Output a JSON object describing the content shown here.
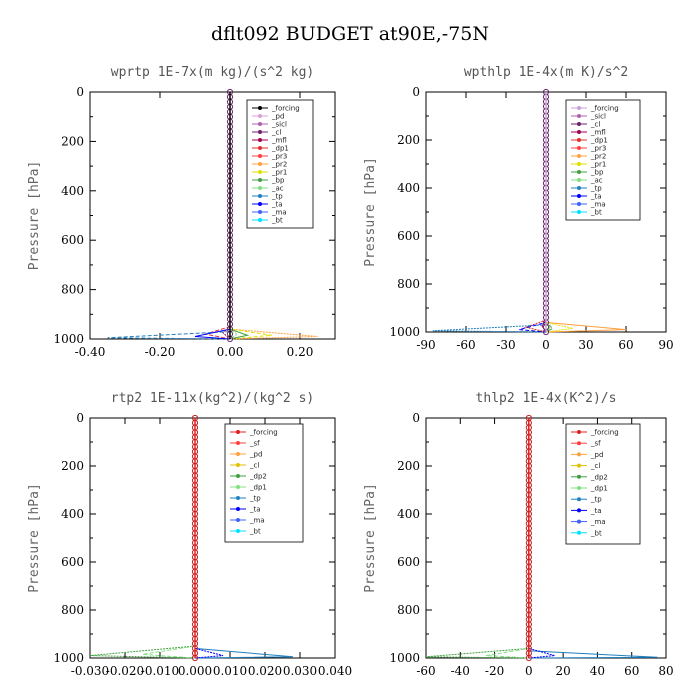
{
  "page_title": "dflt092  BUDGET at90E,-75N",
  "chart_data": [
    {
      "type": "line",
      "title": "wprtp   1E-7x(m kg)/(s^2 kg)",
      "ylabel": "Pressure [hPa]",
      "xlim": [
        -0.4,
        0.3
      ],
      "ylim": [
        1000,
        0
      ],
      "xticks": [
        -0.4,
        -0.2,
        0.0,
        0.2
      ],
      "xtick_labels": [
        "-0.40",
        "-0.20",
        "0.00",
        "0.20"
      ],
      "yticks": [
        0,
        200,
        400,
        600,
        800,
        1000
      ],
      "legend_position": "top-right",
      "series": [
        {
          "name": "_forcing",
          "color": "#000000",
          "x": [
            0,
            0,
            0
          ],
          "y": [
            0,
            500,
            1000
          ]
        },
        {
          "name": "_pd",
          "color": "#d8a0d8",
          "x": [
            0,
            0,
            0
          ],
          "y": [
            0,
            500,
            1000
          ]
        },
        {
          "name": "_sicl",
          "color": "#b060b0",
          "x": [
            0,
            0,
            0
          ],
          "y": [
            0,
            500,
            1000
          ]
        },
        {
          "name": "_cl",
          "color": "#702070",
          "x": [
            0,
            0,
            0
          ],
          "y": [
            0,
            500,
            1000
          ]
        },
        {
          "name": "_mfl",
          "color": "#a00050",
          "x": [
            0,
            0,
            -0.02,
            0
          ],
          "y": [
            0,
            950,
            975,
            1000
          ]
        },
        {
          "name": "_dp1",
          "color": "#e03030",
          "x": [
            0,
            0,
            -0.07,
            0
          ],
          "y": [
            0,
            950,
            980,
            1000
          ]
        },
        {
          "name": "_pr3",
          "color": "#ff4040",
          "x": [
            0,
            0,
            0
          ],
          "y": [
            0,
            500,
            1000
          ]
        },
        {
          "name": "_pr2",
          "color": "#ffa040",
          "x": [
            0,
            0,
            0.25,
            0
          ],
          "y": [
            0,
            960,
            990,
            1000
          ]
        },
        {
          "name": "_pr1",
          "color": "#e0e000",
          "x": [
            0,
            0,
            0.12,
            0
          ],
          "y": [
            0,
            960,
            985,
            1000
          ]
        },
        {
          "name": "_bp",
          "color": "#40a040",
          "x": [
            0,
            0,
            0.05,
            0
          ],
          "y": [
            0,
            960,
            985,
            1000
          ]
        },
        {
          "name": "_ac",
          "color": "#80e080",
          "x": [
            0,
            0,
            0.02,
            0
          ],
          "y": [
            0,
            960,
            980,
            1000
          ]
        },
        {
          "name": "_tp",
          "color": "#2080c0",
          "x": [
            0,
            0,
            -0.35,
            0
          ],
          "y": [
            0,
            970,
            995,
            1000
          ]
        },
        {
          "name": "_ta",
          "color": "#0000ff",
          "x": [
            0,
            0,
            -0.1,
            0
          ],
          "y": [
            0,
            960,
            990,
            1000
          ]
        },
        {
          "name": "_ma",
          "color": "#4060ff",
          "x": [
            0,
            0,
            0
          ],
          "y": [
            0,
            500,
            1000
          ]
        },
        {
          "name": "_bt",
          "color": "#00e0ff",
          "x": [
            0,
            0,
            0
          ],
          "y": [
            0,
            500,
            1000
          ]
        }
      ]
    },
    {
      "type": "line",
      "title": "wpthlp   1E-4x(m K)/s^2",
      "ylabel": "Pressure [hPa]",
      "xlim": [
        -90,
        90
      ],
      "ylim": [
        1000,
        0
      ],
      "xticks": [
        -90,
        -60,
        -30,
        0,
        30,
        60,
        90
      ],
      "xtick_labels": [
        "-90",
        "-60",
        "-30",
        "0",
        "30",
        "60",
        "90"
      ],
      "yticks": [
        0,
        200,
        400,
        600,
        800,
        1000
      ],
      "legend_position": "top-right",
      "series": [
        {
          "name": "_forcing",
          "color": "#c8a0d8",
          "x": [
            0,
            0,
            0
          ],
          "y": [
            0,
            500,
            1000
          ]
        },
        {
          "name": "_sicl",
          "color": "#b060b0",
          "x": [
            0,
            0,
            0
          ],
          "y": [
            0,
            500,
            1000
          ]
        },
        {
          "name": "_cl",
          "color": "#702070",
          "x": [
            0,
            0,
            0
          ],
          "y": [
            0,
            500,
            1000
          ]
        },
        {
          "name": "_mfl",
          "color": "#a00050",
          "x": [
            0,
            0,
            -3,
            0
          ],
          "y": [
            0,
            950,
            975,
            1000
          ]
        },
        {
          "name": "_dp1",
          "color": "#e03030",
          "x": [
            0,
            0,
            -15,
            0
          ],
          "y": [
            0,
            950,
            980,
            1000
          ]
        },
        {
          "name": "_pr3",
          "color": "#ff4040",
          "x": [
            0,
            0,
            0
          ],
          "y": [
            0,
            500,
            1000
          ]
        },
        {
          "name": "_pr2",
          "color": "#ffa040",
          "x": [
            0,
            0,
            60,
            0
          ],
          "y": [
            0,
            960,
            990,
            1000
          ]
        },
        {
          "name": "_pr1",
          "color": "#e0e000",
          "x": [
            0,
            0,
            20,
            0
          ],
          "y": [
            0,
            960,
            985,
            1000
          ]
        },
        {
          "name": "_bp",
          "color": "#40a040",
          "x": [
            0,
            0,
            5,
            0
          ],
          "y": [
            0,
            960,
            985,
            1000
          ]
        },
        {
          "name": "_ac",
          "color": "#80e080",
          "x": [
            0,
            0,
            3,
            0
          ],
          "y": [
            0,
            960,
            980,
            1000
          ]
        },
        {
          "name": "_tp",
          "color": "#2080c0",
          "x": [
            0,
            0,
            -85,
            0
          ],
          "y": [
            0,
            970,
            995,
            1000
          ]
        },
        {
          "name": "_ta",
          "color": "#0000ff",
          "x": [
            0,
            0,
            -20,
            0
          ],
          "y": [
            0,
            960,
            990,
            1000
          ]
        },
        {
          "name": "_ma",
          "color": "#4060ff",
          "x": [
            0,
            0,
            0
          ],
          "y": [
            0,
            500,
            1000
          ]
        },
        {
          "name": "_bt",
          "color": "#00e0ff",
          "x": [
            0,
            0,
            0
          ],
          "y": [
            0,
            500,
            1000
          ]
        }
      ]
    },
    {
      "type": "line",
      "title": "rtp2   1E-11x(kg^2)/(kg^2 s)",
      "ylabel": "Pressure [hPa]",
      "xlim": [
        -0.03,
        0.04
      ],
      "ylim": [
        1000,
        0
      ],
      "xticks": [
        -0.03,
        -0.02,
        -0.01,
        0.0,
        0.01,
        0.02,
        0.03,
        0.04
      ],
      "xtick_labels": [
        "-0.030",
        "-0.020",
        "-0.010",
        "0.000",
        "0.010",
        "0.020",
        "0.030",
        "0.040"
      ],
      "yticks": [
        0,
        200,
        400,
        600,
        800,
        1000
      ],
      "legend_position": "top-right",
      "series": [
        {
          "name": "_forcing",
          "color": "#e02020",
          "x": [
            0,
            0,
            0
          ],
          "y": [
            0,
            500,
            1000
          ]
        },
        {
          "name": "_sf",
          "color": "#ff4040",
          "x": [
            0,
            0,
            0
          ],
          "y": [
            0,
            500,
            1000
          ]
        },
        {
          "name": "_pd",
          "color": "#ffa040",
          "x": [
            0,
            0,
            0
          ],
          "y": [
            0,
            500,
            1000
          ]
        },
        {
          "name": "_cl",
          "color": "#e0c000",
          "x": [
            0,
            0,
            0
          ],
          "y": [
            0,
            500,
            1000
          ]
        },
        {
          "name": "_dp2",
          "color": "#40a040",
          "x": [
            0,
            0,
            -0.03,
            0
          ],
          "y": [
            0,
            950,
            990,
            1000
          ]
        },
        {
          "name": "_dp1",
          "color": "#80e080",
          "x": [
            0,
            0,
            -0.015,
            0
          ],
          "y": [
            0,
            950,
            985,
            1000
          ]
        },
        {
          "name": "_tp",
          "color": "#2080c0",
          "x": [
            0,
            0,
            0.028,
            0
          ],
          "y": [
            0,
            960,
            995,
            1000
          ]
        },
        {
          "name": "_ta",
          "color": "#0000ff",
          "x": [
            0,
            0,
            0.008,
            0
          ],
          "y": [
            0,
            960,
            990,
            1000
          ]
        },
        {
          "name": "_ma",
          "color": "#4060ff",
          "x": [
            0,
            0,
            0
          ],
          "y": [
            0,
            500,
            1000
          ]
        },
        {
          "name": "_bt",
          "color": "#00e0ff",
          "x": [
            0,
            0,
            0
          ],
          "y": [
            0,
            500,
            1000
          ]
        }
      ]
    },
    {
      "type": "line",
      "title": "thlp2   1E-4x(K^2)/s",
      "ylabel": "Pressure [hPa]",
      "xlim": [
        -60,
        80
      ],
      "ylim": [
        1000,
        0
      ],
      "xticks": [
        -60,
        -40,
        -20,
        0,
        20,
        40,
        60,
        80
      ],
      "xtick_labels": [
        "-60",
        "-40",
        "-20",
        "0",
        "20",
        "40",
        "60",
        "80"
      ],
      "yticks": [
        0,
        200,
        400,
        600,
        800,
        1000
      ],
      "legend_position": "top-right",
      "series": [
        {
          "name": "_forcing",
          "color": "#e02020",
          "x": [
            0,
            0,
            0
          ],
          "y": [
            0,
            500,
            1000
          ]
        },
        {
          "name": "_sf",
          "color": "#ff4040",
          "x": [
            0,
            0,
            0
          ],
          "y": [
            0,
            500,
            1000
          ]
        },
        {
          "name": "_pd",
          "color": "#ffa040",
          "x": [
            0,
            0,
            0
          ],
          "y": [
            0,
            500,
            1000
          ]
        },
        {
          "name": "_cl",
          "color": "#e0c000",
          "x": [
            0,
            0,
            0
          ],
          "y": [
            0,
            500,
            1000
          ]
        },
        {
          "name": "_dp2",
          "color": "#40a040",
          "x": [
            0,
            0,
            -60,
            0
          ],
          "y": [
            0,
            960,
            995,
            1000
          ]
        },
        {
          "name": "_dp1",
          "color": "#80e080",
          "x": [
            0,
            0,
            -25,
            0
          ],
          "y": [
            0,
            960,
            990,
            1000
          ]
        },
        {
          "name": "_tp",
          "color": "#2080c0",
          "x": [
            0,
            0,
            75,
            0
          ],
          "y": [
            0,
            970,
            997,
            1000
          ]
        },
        {
          "name": "_ta",
          "color": "#0000ff",
          "x": [
            0,
            0,
            15,
            0
          ],
          "y": [
            0,
            960,
            990,
            1000
          ]
        },
        {
          "name": "_ma",
          "color": "#4060ff",
          "x": [
            0,
            0,
            0
          ],
          "y": [
            0,
            500,
            1000
          ]
        },
        {
          "name": "_bt",
          "color": "#00e0ff",
          "x": [
            0,
            0,
            0
          ],
          "y": [
            0,
            500,
            1000
          ]
        }
      ]
    }
  ]
}
